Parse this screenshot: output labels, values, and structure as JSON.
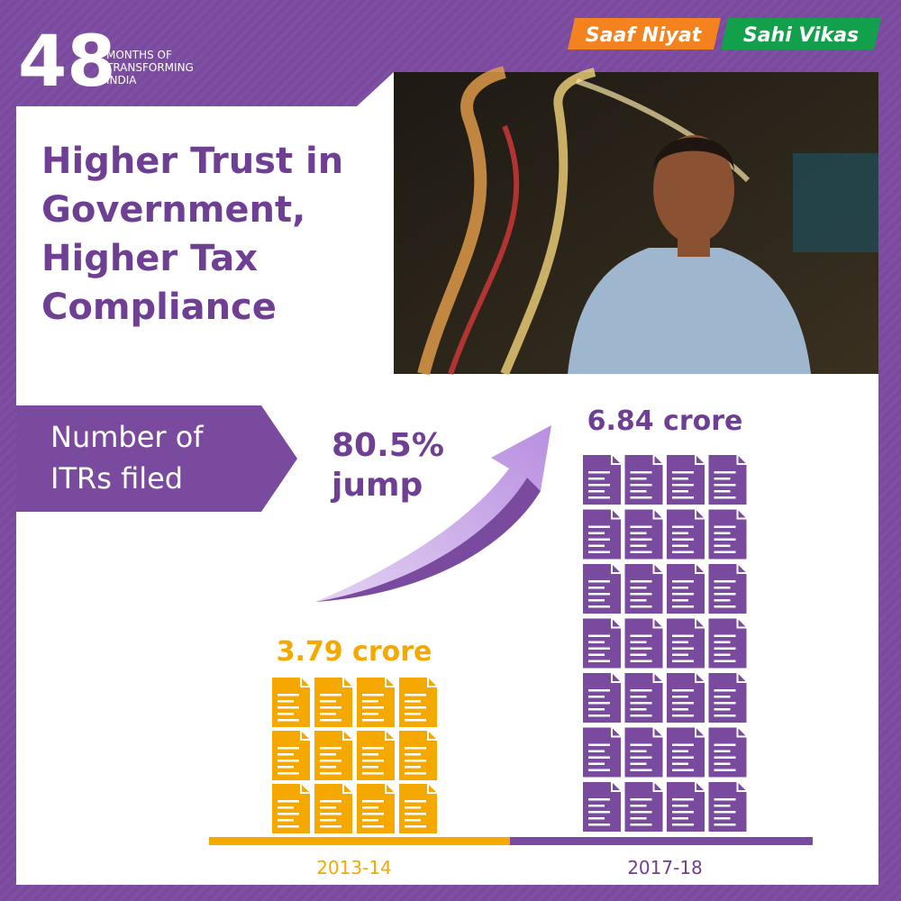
{
  "logo": {
    "number": "48",
    "tagline": [
      "MONTHS OF",
      "TRANSFORMING",
      "INDIA"
    ]
  },
  "badges": [
    "Saaf Niyat",
    "Sahi Vikas"
  ],
  "title": [
    "Higher Trust in",
    "Government,",
    "Higher Tax",
    "Compliance"
  ],
  "label": [
    "Number of",
    "ITRs filed"
  ],
  "growth": [
    "80.5%",
    "jump"
  ],
  "bars": [
    {
      "value_label": "3.79 crore",
      "year": "2013-14"
    },
    {
      "value_label": "6.84 crore",
      "year": "2017-18"
    }
  ]
}
